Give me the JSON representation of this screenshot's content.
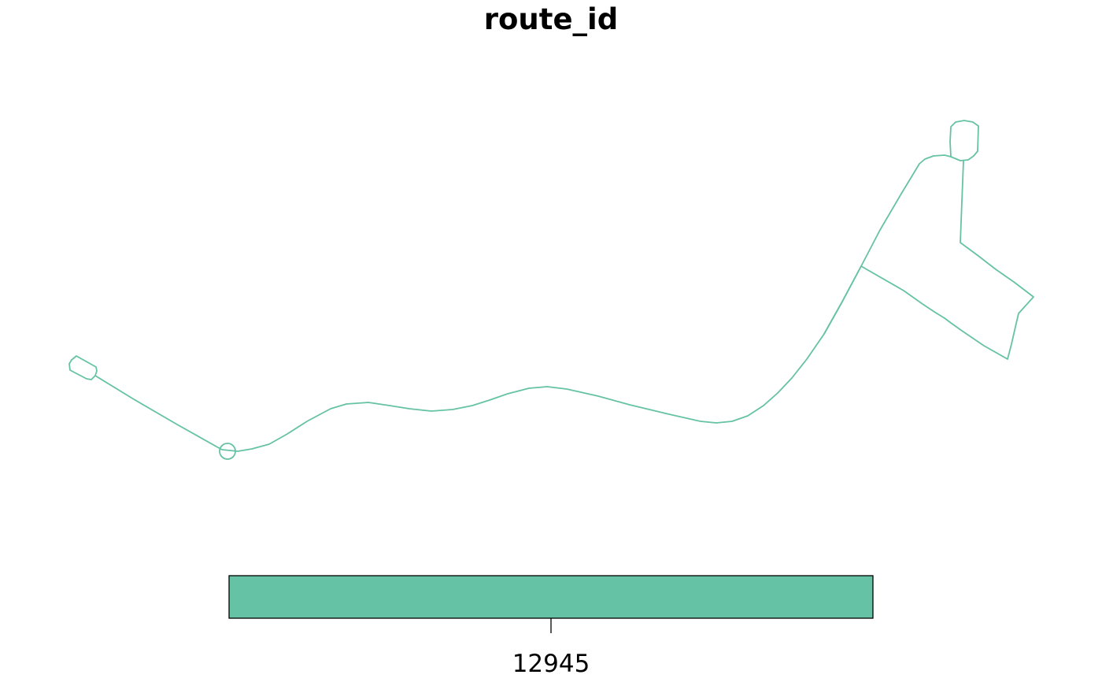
{
  "title": "route_id",
  "route": {
    "id": "12945",
    "color": "#66c2a5"
  },
  "legend": {
    "values": [
      "12945"
    ],
    "colors": [
      "#66c2a5"
    ],
    "border_color": "#000000"
  }
}
